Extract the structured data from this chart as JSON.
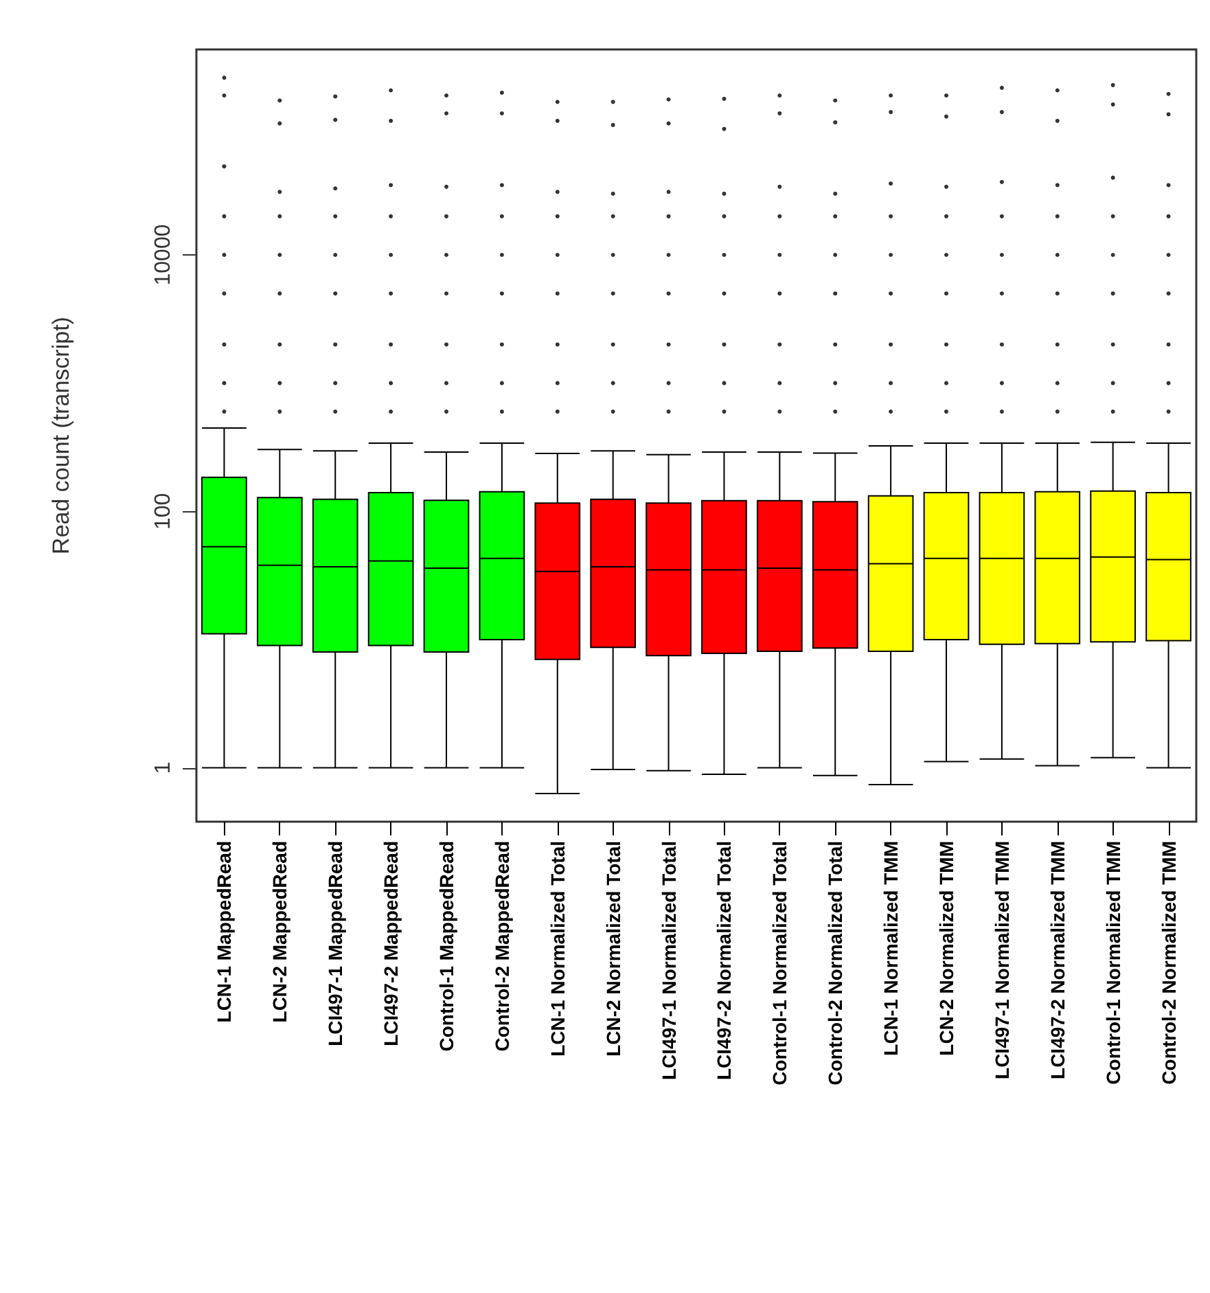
{
  "chart_data": {
    "type": "box",
    "ylabel": "Read count (transcript)",
    "log": "y",
    "ylim": [
      0.38,
      400000
    ],
    "yticks": [
      1,
      100,
      10000
    ],
    "grid": false,
    "categories": [
      "LCN-1 MappedRead",
      "LCN-2 MappedRead",
      "LCI497-1 MappedRead",
      "LCI497-2 MappedRead",
      "Control-1 MappedRead",
      "Control-2 MappedRead",
      "LCN-1 Normalized Total",
      "LCN-2 Normalized Total",
      "LCI497-1 Normalized Total",
      "LCI497-2 Normalized Total",
      "Control-1 Normalized Total",
      "Control-2 Normalized Total",
      "LCN-1 Normalized TMM",
      "LCN-2 Normalized TMM",
      "LCI497-1 Normalized TMM",
      "LCI497-2 Normalized TMM",
      "Control-1 Normalized TMM",
      "Control-2 Normalized TMM"
    ],
    "colors": [
      "#00ff00",
      "#00ff00",
      "#00ff00",
      "#00ff00",
      "#00ff00",
      "#00ff00",
      "#ff0000",
      "#ff0000",
      "#ff0000",
      "#ff0000",
      "#ff0000",
      "#ff0000",
      "#ffff00",
      "#ffff00",
      "#ffff00",
      "#ffff00",
      "#ffff00",
      "#ffff00"
    ],
    "boxes": [
      {
        "low": 1,
        "q1": 11.1,
        "median": 53,
        "q3": 184,
        "high": 447,
        "outliers": [
          241000,
          175000,
          49000,
          20000,
          10000,
          5000,
          2000,
          1000,
          600
        ]
      },
      {
        "low": 1,
        "q1": 9,
        "median": 38,
        "q3": 128,
        "high": 304,
        "outliers": [
          160000,
          106000,
          31000,
          20000,
          10000,
          5000,
          2000,
          1000,
          600
        ]
      },
      {
        "low": 1,
        "q1": 8,
        "median": 37,
        "q3": 124,
        "high": 296,
        "outliers": [
          172000,
          113000,
          33000,
          20000,
          10000,
          5000,
          2000,
          1000,
          600
        ]
      },
      {
        "low": 1,
        "q1": 9,
        "median": 41,
        "q3": 140,
        "high": 340,
        "outliers": [
          192000,
          111000,
          35000,
          20000,
          10000,
          5000,
          2000,
          1000,
          600
        ]
      },
      {
        "low": 1,
        "q1": 8,
        "median": 36,
        "q3": 122,
        "high": 290,
        "outliers": [
          175000,
          127000,
          34000,
          20000,
          10000,
          5000,
          2000,
          1000,
          600
        ]
      },
      {
        "low": 1,
        "q1": 10,
        "median": 43,
        "q3": 142,
        "high": 340,
        "outliers": [
          184000,
          127000,
          35000,
          20000,
          10000,
          5000,
          2000,
          1000,
          600
        ]
      },
      {
        "low": 0.63,
        "q1": 7,
        "median": 34,
        "q3": 116,
        "high": 283,
        "outliers": [
          156000,
          111000,
          31000,
          20000,
          10000,
          5000,
          2000,
          1000,
          600
        ]
      },
      {
        "low": 0.97,
        "q1": 8.7,
        "median": 37,
        "q3": 124,
        "high": 296,
        "outliers": [
          156000,
          103000,
          30000,
          20000,
          10000,
          5000,
          2000,
          1000,
          600
        ]
      },
      {
        "low": 0.95,
        "q1": 7.5,
        "median": 35,
        "q3": 116,
        "high": 277,
        "outliers": [
          163000,
          106000,
          31000,
          20000,
          10000,
          5000,
          2000,
          1000,
          600
        ]
      },
      {
        "low": 0.89,
        "q1": 7.8,
        "median": 35,
        "q3": 121,
        "high": 290,
        "outliers": [
          165000,
          96000,
          30000,
          20000,
          10000,
          5000,
          2000,
          1000,
          600
        ]
      },
      {
        "low": 1,
        "q1": 8.1,
        "median": 36,
        "q3": 121,
        "high": 290,
        "outliers": [
          175000,
          127000,
          34000,
          20000,
          10000,
          5000,
          2000,
          1000,
          600
        ]
      },
      {
        "low": 0.87,
        "q1": 8.6,
        "median": 35,
        "q3": 119,
        "high": 285,
        "outliers": [
          160000,
          108000,
          30000,
          20000,
          10000,
          5000,
          2000,
          1000,
          600
        ]
      },
      {
        "low": 0.74,
        "q1": 8.1,
        "median": 39,
        "q3": 132,
        "high": 324,
        "outliers": [
          175000,
          130000,
          36000,
          20000,
          10000,
          5000,
          2000,
          1000,
          600
        ]
      },
      {
        "low": 1.12,
        "q1": 10,
        "median": 43,
        "q3": 140,
        "high": 340,
        "outliers": [
          175000,
          120000,
          34000,
          20000,
          10000,
          5000,
          2000,
          1000,
          600
        ]
      },
      {
        "low": 1.17,
        "q1": 9.2,
        "median": 43,
        "q3": 140,
        "high": 340,
        "outliers": [
          201000,
          130000,
          37000,
          20000,
          10000,
          5000,
          2000,
          1000,
          600
        ]
      },
      {
        "low": 1.04,
        "q1": 9.3,
        "median": 43,
        "q3": 142,
        "high": 340,
        "outliers": [
          192000,
          111000,
          35000,
          20000,
          10000,
          5000,
          2000,
          1000,
          600
        ]
      },
      {
        "low": 1.2,
        "q1": 9.6,
        "median": 44,
        "q3": 144,
        "high": 346,
        "outliers": [
          211000,
          149000,
          40000,
          20000,
          10000,
          5000,
          2000,
          1000,
          600
        ]
      },
      {
        "low": 1,
        "q1": 9.8,
        "median": 42,
        "q3": 140,
        "high": 340,
        "outliers": [
          180000,
          125000,
          35000,
          20000,
          10000,
          5000,
          2000,
          1000,
          600
        ]
      }
    ]
  }
}
